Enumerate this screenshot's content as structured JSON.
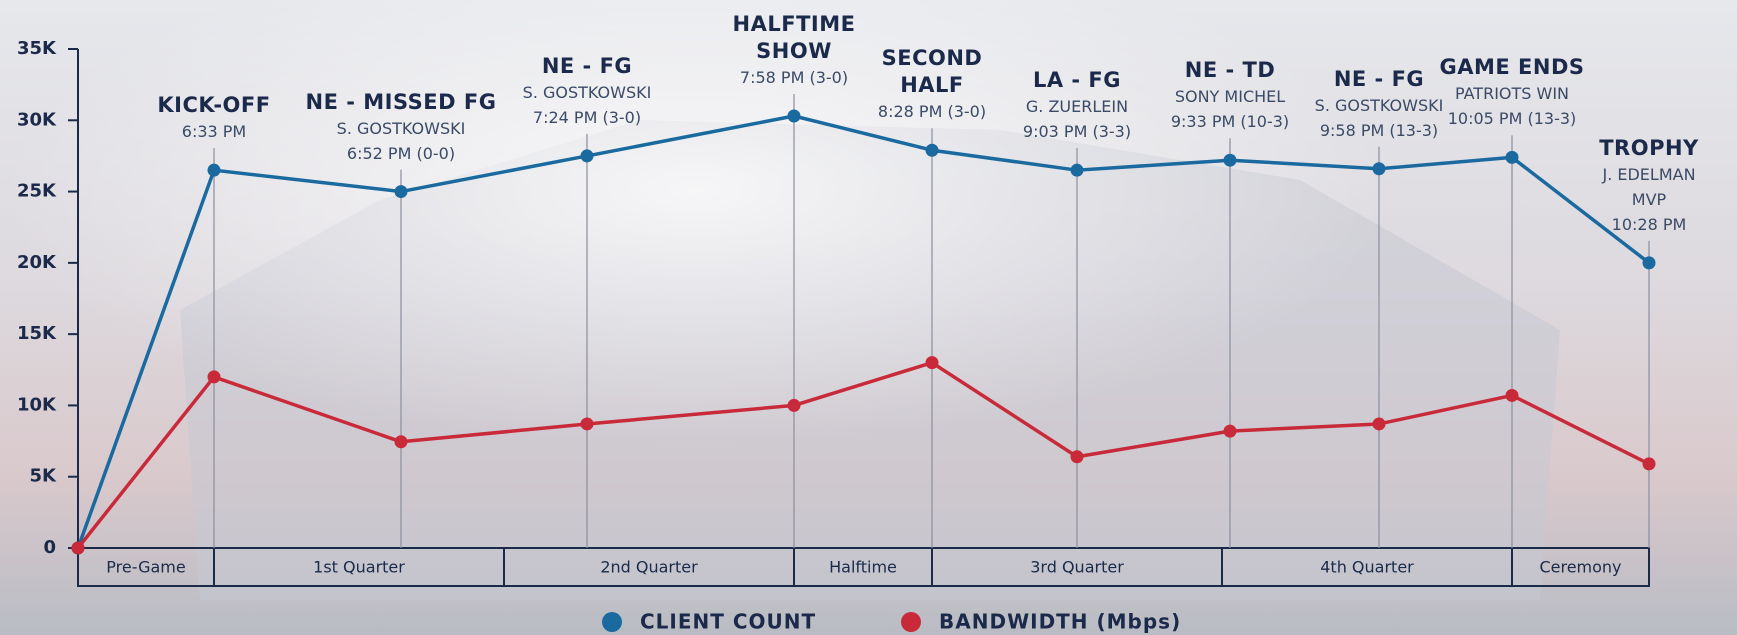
{
  "chart_data": {
    "type": "line",
    "categories": [
      null,
      "KICK-OFF",
      "NE - MISSED FG",
      "NE - FG",
      "HALFTIME\nSHOW",
      "SECOND\nHALF",
      "LA - FG",
      "NE - TD",
      "NE - FG",
      "GAME ENDS",
      "TROPHY"
    ],
    "details": [
      null,
      [
        "6:33 PM"
      ],
      [
        "S. GOSTKOWSKI",
        "6:52 PM (0-0)"
      ],
      [
        "S. GOSTKOWSKI",
        "7:24 PM (3-0)"
      ],
      [
        "7:58 PM (3-0)"
      ],
      [
        "8:28 PM (3-0)"
      ],
      [
        "G. ZUERLEIN",
        "9:03 PM (3-3)"
      ],
      [
        "SONY MICHEL",
        "9:33 PM (10-3)"
      ],
      [
        "S. GOSTKOWSKI",
        "9:58 PM (13-3)"
      ],
      [
        "PATRIOTS WIN",
        "10:05 PM (13-3)"
      ],
      [
        "J. EDELMAN MVP",
        "10:28 PM"
      ]
    ],
    "periods": [
      "Pre-Game",
      "1st Quarter",
      "2nd Quarter",
      "Halftime",
      "3rd Quarter",
      "4th Quarter",
      "Ceremony"
    ],
    "series": [
      {
        "name": "CLIENT COUNT",
        "color": "#1a6aa0",
        "values": [
          0,
          26500,
          25000,
          27500,
          30300,
          27900,
          26500,
          27200,
          26600,
          27400,
          20000
        ]
      },
      {
        "name": "BANDWIDTH (Mbps)",
        "color": "#c92a3a",
        "values": [
          0,
          12000,
          7450,
          8700,
          10000,
          13000,
          6400,
          8200,
          8700,
          10700,
          5900
        ]
      }
    ],
    "ylim": [
      0,
      35000
    ],
    "yticks": [
      {
        "value": 0,
        "label": "0"
      },
      {
        "value": 5000,
        "label": "5K"
      },
      {
        "value": 10000,
        "label": "10K"
      },
      {
        "value": 15000,
        "label": "15K"
      },
      {
        "value": 20000,
        "label": "20K"
      },
      {
        "value": 25000,
        "label": "25K"
      },
      {
        "value": 30000,
        "label": "30K"
      },
      {
        "value": 35000,
        "label": "35K"
      }
    ],
    "legend": "bottom"
  }
}
